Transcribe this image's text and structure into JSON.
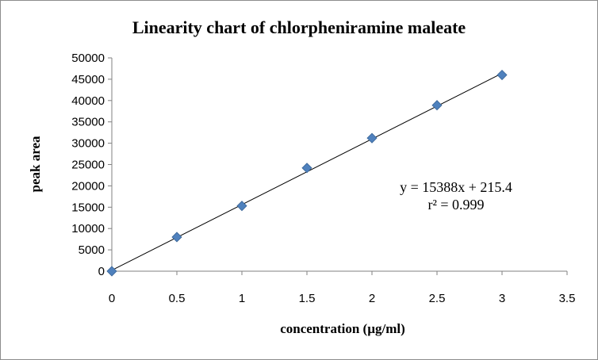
{
  "chart_data": {
    "type": "scatter",
    "title": "Linearity chart of chlorpheniramine maleate",
    "xlabel": "concentration (µg/ml)",
    "ylabel": "peak area",
    "xlim": [
      0,
      3.5
    ],
    "ylim": [
      0,
      50000
    ],
    "x_ticks": [
      0,
      0.5,
      1,
      1.5,
      2,
      2.5,
      3,
      3.5
    ],
    "y_ticks": [
      0,
      5000,
      10000,
      15000,
      20000,
      25000,
      30000,
      35000,
      40000,
      45000,
      50000
    ],
    "x_tick_labels": [
      "0",
      "0.5",
      "1",
      "1.5",
      "2",
      "2.5",
      "3",
      "3.5"
    ],
    "y_tick_labels": [
      "0",
      "5000",
      "10000",
      "15000",
      "20000",
      "25000",
      "30000",
      "35000",
      "40000",
      "45000",
      "50000"
    ],
    "series": [
      {
        "x": [
          0,
          0.5,
          1,
          1.5,
          2,
          2.5,
          3
        ],
        "y": [
          0,
          8000,
          15300,
          24200,
          31200,
          38900,
          46000
        ],
        "marker": "diamond",
        "color": "#4f81bd"
      }
    ],
    "trendline": {
      "slope": 15388,
      "intercept": 215.4,
      "color": "#000000"
    },
    "annotations": [
      "y = 15388x + 215.4",
      "r² = 0.999"
    ],
    "grid": false,
    "legend": "none"
  }
}
